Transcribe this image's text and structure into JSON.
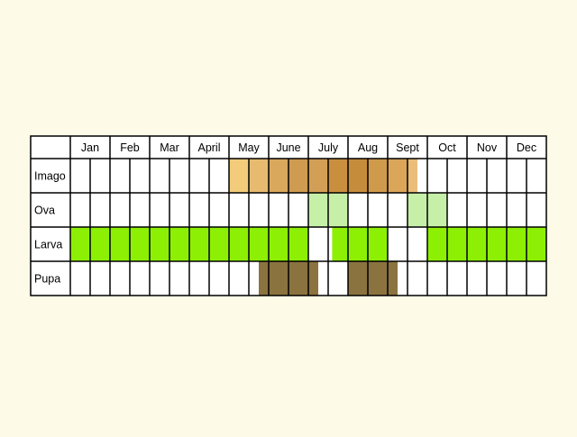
{
  "chart_data": {
    "type": "table",
    "months": [
      "Jan",
      "Feb",
      "Mar",
      "April",
      "May",
      "June",
      "July",
      "Aug",
      "Sept",
      "Oct",
      "Nov",
      "Dec"
    ],
    "stages": [
      "Imago",
      "Ova",
      "Larva",
      "Pupa"
    ],
    "periods_per_month": 2,
    "activity": [
      {
        "stage": "Imago",
        "ranges": [
          {
            "start": 4.0,
            "end": 4.5,
            "color": "#f2cc7a"
          },
          {
            "start": 4.5,
            "end": 5.0,
            "color": "#e6bb70"
          },
          {
            "start": 5.0,
            "end": 5.5,
            "color": "#d9a85d"
          },
          {
            "start": 5.5,
            "end": 6.0,
            "color": "#cf9b50"
          },
          {
            "start": 6.0,
            "end": 6.5,
            "color": "#d39f56"
          },
          {
            "start": 6.5,
            "end": 7.0,
            "color": "#c98f3f"
          },
          {
            "start": 7.0,
            "end": 7.5,
            "color": "#c58c3b"
          },
          {
            "start": 7.5,
            "end": 8.0,
            "color": "#d09a4c"
          },
          {
            "start": 8.0,
            "end": 8.5,
            "color": "#dba55a"
          },
          {
            "start": 8.5,
            "end": 8.75,
            "color": "#eabd78"
          }
        ]
      },
      {
        "stage": "Ova",
        "ranges": [
          {
            "start": 6.0,
            "end": 7.0,
            "color": "#c6f0a8"
          },
          {
            "start": 8.5,
            "end": 9.5,
            "color": "#c6f0a8"
          }
        ]
      },
      {
        "stage": "Larva",
        "ranges": [
          {
            "start": 0.0,
            "end": 6.0,
            "color": "#8df004"
          },
          {
            "start": 6.6,
            "end": 8.0,
            "color": "#8df004"
          },
          {
            "start": 9.0,
            "end": 12.0,
            "color": "#8df004"
          }
        ]
      },
      {
        "stage": "Pupa",
        "ranges": [
          {
            "start": 4.75,
            "end": 6.25,
            "color": "#8b7340"
          },
          {
            "start": 7.0,
            "end": 8.25,
            "color": "#8b7340"
          }
        ]
      }
    ]
  }
}
